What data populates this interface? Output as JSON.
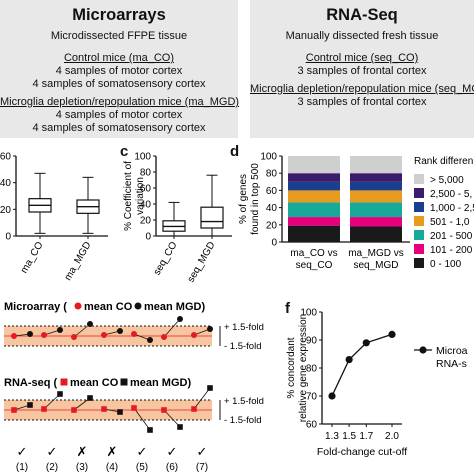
{
  "panel_a": {
    "title": "Microarrays",
    "lines": [
      "Microdissected FFPE tissue",
      "Control mice (ma_CO)",
      "4 samples of motor cortex",
      "4 samples of somatosensory cortex",
      "Microglia depletion/repopulation mice (ma_MGD)",
      "4 samples of motor cortex",
      "4 samples of somatosensory cortex"
    ]
  },
  "panel_b": {
    "title": "RNA-Seq",
    "lines": [
      "Manually dissected fresh tissue",
      "Control mice (seq_CO)",
      "3 samples of frontal cortex",
      "Microglia depletion/repopulation mice (seq_MGD)",
      "3 samples of frontal cortex"
    ]
  },
  "letters": {
    "c": "c",
    "d": "d",
    "f": "f"
  },
  "chart_data": [
    {
      "panel": "b",
      "type": "box",
      "categories": [
        "ma_CO",
        "ma_MGD"
      ],
      "ylim": [
        0,
        60
      ],
      "yticks": [
        "0",
        "20",
        "40",
        "60"
      ],
      "boxes": [
        {
          "min": 2,
          "q1": 18,
          "median": 23,
          "q3": 28,
          "max": 47
        },
        {
          "min": 2,
          "q1": 17,
          "median": 22,
          "q3": 27,
          "max": 44
        }
      ]
    },
    {
      "panel": "c",
      "type": "box",
      "categories": [
        "seq_CO",
        "seq_MGD"
      ],
      "ylabel": "% Coefficient of variation",
      "ylim": [
        0,
        100
      ],
      "yticks": [
        "0",
        "20",
        "40",
        "60",
        "80",
        "100"
      ],
      "boxes": [
        {
          "min": 0,
          "q1": 6,
          "median": 12,
          "q3": 19,
          "max": 42
        },
        {
          "min": 0,
          "q1": 10,
          "median": 18,
          "q3": 36,
          "max": 76
        }
      ]
    },
    {
      "panel": "d",
      "type": "bar",
      "stacked": true,
      "ylabel": "% of genes found in top 500",
      "ylim": [
        0,
        100
      ],
      "yticks": [
        "0",
        "20",
        "40",
        "60",
        "80",
        "100"
      ],
      "categories": [
        "ma_CO vs seq_CO",
        "ma_MGD vs seq_MGD"
      ],
      "legend_title": "Rank differen",
      "series": [
        {
          "name": "0 - 100",
          "color": "#1a1a1a",
          "values": [
            19,
            18
          ]
        },
        {
          "name": "101 - 200",
          "color": "#e6007e",
          "values": [
            10,
            11
          ]
        },
        {
          "name": "201 - 500",
          "color": "#19a99a",
          "values": [
            17,
            17
          ]
        },
        {
          "name": "501 - 1,0",
          "color": "#e69c1e",
          "values": [
            14,
            14
          ]
        },
        {
          "name": "1,000 - 2,5",
          "color": "#1b3f8f",
          "values": [
            10,
            10
          ]
        },
        {
          "name": "2,500 - 5,",
          "color": "#3b1b6b",
          "values": [
            10,
            10
          ]
        },
        {
          "name": "> 5,000",
          "color": "#cfcfcf",
          "values": [
            20,
            20
          ]
        }
      ]
    },
    {
      "panel": "e",
      "type": "dot-arrow",
      "rows": [
        {
          "title": "Microarray (",
          "mean_co_label": "mean CO",
          "mean_mgd_label": "mean MGD",
          "marker": "circle",
          "pairs": [
            {
              "co": 0,
              "mgd": 0.2
            },
            {
              "co": 0.1,
              "mgd": 0.6
            },
            {
              "co": -0.1,
              "mgd": 1.2
            },
            {
              "co": 0.1,
              "mgd": 0.5
            },
            {
              "co": 0.2,
              "mgd": -0.4
            },
            {
              "co": -0.1,
              "mgd": 1.7
            },
            {
              "co": 0.1,
              "mgd": 0.7
            }
          ]
        },
        {
          "title": "RNA-seq (",
          "mean_co_label": "mean CO",
          "mean_mgd_label": "mean MGD",
          "marker": "square",
          "pairs": [
            {
              "co": 0,
              "mgd": 0.5
            },
            {
              "co": 0.1,
              "mgd": 1.6
            },
            {
              "co": 0,
              "mgd": 1.2
            },
            {
              "co": 0.1,
              "mgd": -0.2
            },
            {
              "co": 0.2,
              "mgd": -2.0
            },
            {
              "co": 0,
              "mgd": -1.7
            },
            {
              "co": 0.1,
              "mgd": 2.2
            }
          ]
        }
      ],
      "fold_labels": [
        "+ 1.5-fold",
        "- 1.5-fold"
      ],
      "marks": [
        "✓",
        "✓",
        "✗",
        "✗",
        "✓",
        "✓",
        "✓"
      ],
      "sample_labels": [
        "(1)",
        "(2)",
        "(3)",
        "(4)",
        "(5)",
        "(6)",
        "(7)"
      ]
    },
    {
      "panel": "f",
      "type": "line",
      "xlabel": "Fold-change cut-off",
      "ylabel": "% concordant relative gene expression",
      "x": [
        1.3,
        1.5,
        1.7,
        2.0
      ],
      "xticks": [
        "1.3",
        "1.5",
        "1.7",
        "2.0"
      ],
      "ylim": [
        60,
        100
      ],
      "yticks": [
        "60",
        "70",
        "80",
        "90",
        "100"
      ],
      "series": [
        {
          "name": "Microa RNA-s",
          "values": [
            70,
            83,
            89,
            92
          ]
        }
      ],
      "legend": [
        "Microa",
        "RNA-s"
      ]
    }
  ]
}
